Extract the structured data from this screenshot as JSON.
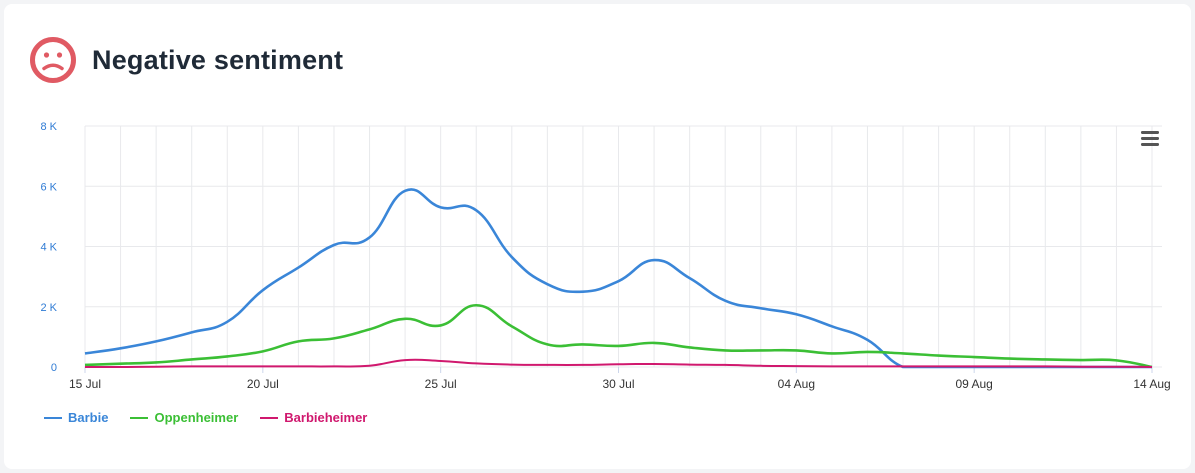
{
  "header": {
    "title": "Negative sentiment",
    "icon": "sad-face-icon",
    "icon_color": "#e05a63"
  },
  "toolbar": {
    "menu_icon": "hamburger-menu-icon"
  },
  "colors": {
    "Barbie": "#3a86d8",
    "Oppenheimer": "#3bbf35",
    "Barbieheimer": "#d0186e",
    "axis_label": "#2f7bd4",
    "grid": "#e8e9ec"
  },
  "chart_data": {
    "type": "line",
    "title": "Negative sentiment",
    "xlabel": "",
    "ylabel": "",
    "ylim": [
      0,
      8000
    ],
    "yticks": [
      0,
      2000,
      4000,
      6000,
      8000
    ],
    "ytick_labels": [
      "0",
      "2 K",
      "4 K",
      "6 K",
      "8 K"
    ],
    "x_start": "15 Jul",
    "x_end": "14 Aug",
    "xticks": [
      {
        "day": 0,
        "label": "15 Jul"
      },
      {
        "day": 5,
        "label": "20 Jul"
      },
      {
        "day": 10,
        "label": "25 Jul"
      },
      {
        "day": 15,
        "label": "30 Jul"
      },
      {
        "day": 20,
        "label": "04 Aug"
      },
      {
        "day": 25,
        "label": "09 Aug"
      },
      {
        "day": 30,
        "label": "14 Aug"
      }
    ],
    "x_days": [
      0,
      1,
      2,
      3,
      4,
      5,
      6,
      7,
      8,
      9,
      10,
      11,
      12,
      13,
      14,
      15,
      16,
      17,
      18,
      19,
      20,
      21,
      22,
      23,
      24,
      25,
      26,
      27,
      28,
      29,
      30
    ],
    "legend_position": "bottom-left",
    "series": [
      {
        "name": "Barbie",
        "values": [
          450,
          620,
          850,
          1150,
          1500,
          2550,
          3300,
          4050,
          4300,
          5850,
          5300,
          5200,
          3650,
          2750,
          2500,
          2850,
          3550,
          2950,
          2200,
          1950,
          1750,
          1350,
          900,
          0,
          0,
          0,
          0,
          0,
          0,
          0,
          0
        ]
      },
      {
        "name": "Oppenheimer",
        "values": [
          70,
          110,
          150,
          250,
          350,
          520,
          850,
          950,
          1250,
          1600,
          1380,
          2050,
          1350,
          750,
          750,
          700,
          800,
          650,
          550,
          550,
          550,
          450,
          500,
          450,
          380,
          330,
          280,
          250,
          230,
          220,
          0
        ]
      },
      {
        "name": "Barbieheimer",
        "values": [
          0,
          0,
          10,
          20,
          20,
          20,
          20,
          20,
          40,
          230,
          200,
          120,
          80,
          70,
          70,
          90,
          100,
          80,
          70,
          40,
          30,
          20,
          20,
          20,
          20,
          20,
          20,
          20,
          10,
          10,
          0
        ]
      }
    ]
  }
}
